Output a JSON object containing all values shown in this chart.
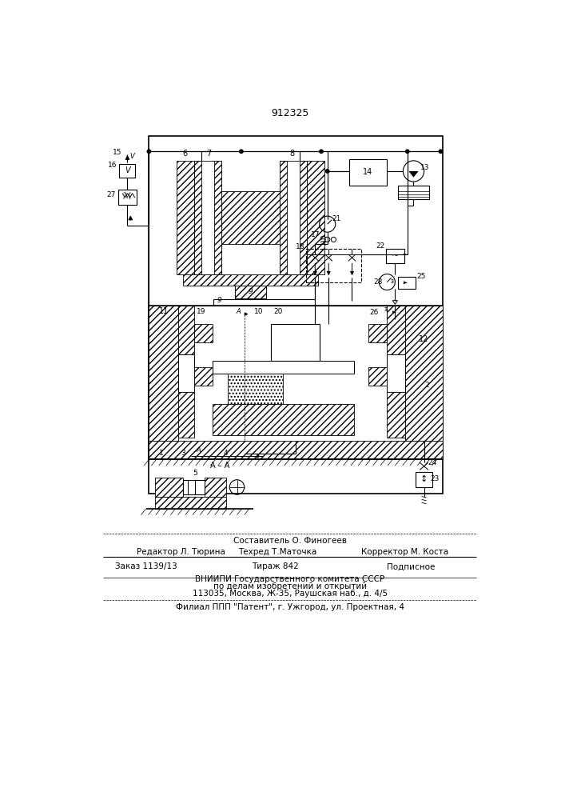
{
  "patent_number": "912325",
  "bg": "#ffffff",
  "lc": "#000000",
  "footer": {
    "compiled_by": "Составитель О. Финогеев",
    "editor": "Редактор Л. Тюрина",
    "tech": "Техред Т.Маточка",
    "corrector": "Корректор М. Коста",
    "order": "Заказ 1139/13",
    "tiraz": "Тираж 842",
    "podp": "Подписное",
    "vniip1": "ВНИИПИ Государственного комитета СССР",
    "vniip2": "по делам изобретений и открытий",
    "vniip3": "113035, Москва, Ж-35, Раушская наб., д. 4/5",
    "filial": "Филиал ППП \"Патент\", г. Ужгород, ул. Проектная, 4"
  }
}
